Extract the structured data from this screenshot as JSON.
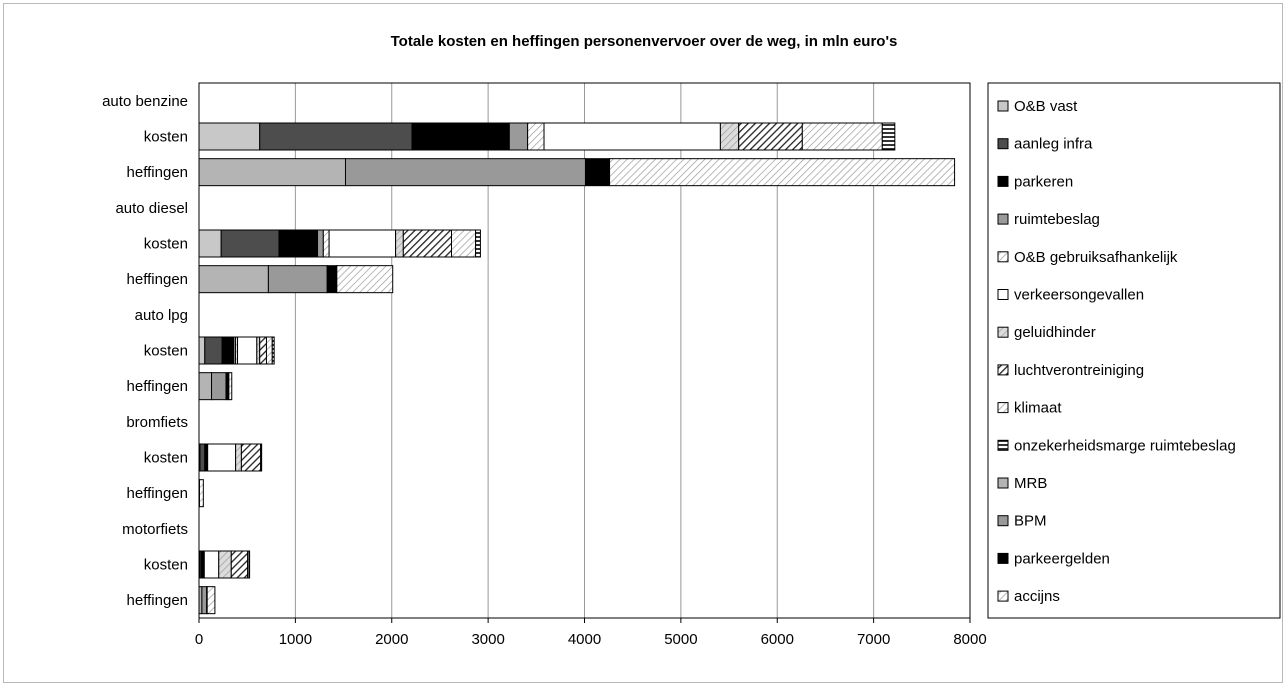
{
  "chart_data": {
    "type": "bar",
    "orientation": "horizontal",
    "stacked": true,
    "title": "Totale kosten en heffingen personenvervoer over de weg, in mln euro's",
    "xlabel": "",
    "ylabel": "",
    "xlim": [
      0,
      8000
    ],
    "xticks": [
      0,
      1000,
      2000,
      3000,
      4000,
      5000,
      6000,
      7000,
      8000
    ],
    "grid": "vertical",
    "legend_position": "right",
    "categories": [
      "auto benzine",
      "kosten",
      "heffingen",
      "auto diesel",
      "kosten",
      "heffingen",
      "auto lpg",
      "kosten",
      "heffingen",
      "bromfiets",
      "kosten",
      "heffingen",
      "motorfiets",
      "kosten",
      "heffingen"
    ],
    "series": [
      {
        "name": "O&B vast",
        "fill": "#c8c8c8",
        "pattern": "solid",
        "values": [
          0,
          630,
          0,
          0,
          230,
          0,
          0,
          60,
          0,
          0,
          10,
          0,
          0,
          10,
          0
        ]
      },
      {
        "name": "aanleg infra",
        "fill": "#4d4d4d",
        "pattern": "solid",
        "values": [
          0,
          1580,
          0,
          0,
          600,
          0,
          0,
          180,
          0,
          0,
          50,
          0,
          0,
          15,
          0
        ]
      },
      {
        "name": "parkeren",
        "fill": "#000000",
        "pattern": "solid",
        "values": [
          0,
          1010,
          0,
          0,
          400,
          0,
          0,
          120,
          0,
          0,
          20,
          0,
          0,
          20,
          0
        ]
      },
      {
        "name": "ruimtebeslag",
        "fill": "#9a9a9a",
        "pattern": "solid",
        "values": [
          0,
          190,
          0,
          0,
          60,
          0,
          0,
          20,
          0,
          0,
          5,
          0,
          0,
          5,
          0
        ]
      },
      {
        "name": "O&B gebruiksafhankelijk",
        "fill": "#ffffff",
        "pattern": "hatch-light",
        "values": [
          0,
          170,
          0,
          0,
          60,
          0,
          0,
          20,
          0,
          0,
          5,
          0,
          0,
          5,
          0
        ]
      },
      {
        "name": "verkeersongevallen",
        "fill": "#ffffff",
        "pattern": "solid",
        "values": [
          0,
          1830,
          0,
          0,
          690,
          0,
          0,
          200,
          0,
          0,
          290,
          0,
          0,
          150,
          0
        ]
      },
      {
        "name": "geluidhinder",
        "fill": "#dcdcdc",
        "pattern": "hatch-light",
        "values": [
          0,
          190,
          0,
          0,
          80,
          0,
          0,
          30,
          0,
          0,
          60,
          0,
          0,
          130,
          0
        ]
      },
      {
        "name": "luchtverontreiniging",
        "fill": "#ffffff",
        "pattern": "hatch-dense",
        "values": [
          0,
          660,
          0,
          0,
          500,
          0,
          0,
          70,
          0,
          0,
          200,
          0,
          0,
          170,
          0
        ]
      },
      {
        "name": "klimaat",
        "fill": "#ffffff",
        "pattern": "hatch-light",
        "values": [
          0,
          830,
          0,
          0,
          250,
          0,
          0,
          60,
          0,
          0,
          5,
          0,
          0,
          15,
          0
        ]
      },
      {
        "name": "onzekerheidsmarge ruimtebeslag",
        "fill": "#ffffff",
        "pattern": "hlines",
        "values": [
          0,
          130,
          0,
          0,
          50,
          0,
          0,
          20,
          0,
          0,
          5,
          0,
          0,
          5,
          0
        ]
      },
      {
        "name": "MRB",
        "fill": "#b4b4b4",
        "pattern": "solid",
        "values": [
          0,
          0,
          1520,
          0,
          0,
          720,
          0,
          0,
          130,
          0,
          0,
          5,
          0,
          0,
          30
        ]
      },
      {
        "name": "BPM",
        "fill": "#999999",
        "pattern": "solid",
        "values": [
          0,
          0,
          2490,
          0,
          0,
          610,
          0,
          0,
          150,
          0,
          0,
          0,
          0,
          0,
          50
        ]
      },
      {
        "name": "parkeergelden",
        "fill": "#000000",
        "pattern": "solid",
        "values": [
          0,
          0,
          250,
          0,
          0,
          100,
          0,
          0,
          30,
          0,
          0,
          0,
          0,
          0,
          5
        ]
      },
      {
        "name": "accijns",
        "fill": "#ffffff",
        "pattern": "hatch-light",
        "values": [
          0,
          0,
          3580,
          0,
          0,
          580,
          0,
          0,
          30,
          0,
          0,
          40,
          0,
          0,
          80
        ]
      }
    ]
  }
}
